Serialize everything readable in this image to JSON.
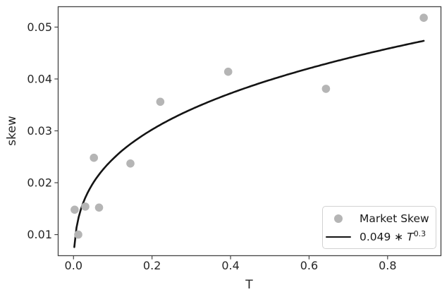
{
  "figure": {
    "background": "#ffffff"
  },
  "chart_data": {
    "type": "scatter+line",
    "title": "",
    "xlabel": "T",
    "ylabel": "skew",
    "xlim": [
      -0.04,
      0.935
    ],
    "ylim": [
      0.006,
      0.054
    ],
    "x_ticks": [
      0.0,
      0.2,
      0.4,
      0.6,
      0.8
    ],
    "x_tick_labels": [
      "0.0",
      "0.2",
      "0.4",
      "0.6",
      "0.8"
    ],
    "y_ticks": [
      0.01,
      0.02,
      0.03,
      0.04,
      0.05
    ],
    "y_tick_labels": [
      "0.01",
      "0.02",
      "0.03",
      "0.04",
      "0.05"
    ],
    "grid": false,
    "legend": {
      "position": "lower right",
      "entries": [
        {
          "handle": "marker",
          "label": "Market Skew"
        },
        {
          "handle": "line",
          "label_plain": "0.049 * T^0.3",
          "label_prefix": "0.049 ∗ ",
          "label_var": "T",
          "label_sup": "0.3"
        }
      ]
    },
    "series": [
      {
        "name": "Market Skew",
        "type": "scatter",
        "color": "#b5b5b5",
        "points": [
          [
            0.003,
            0.0148
          ],
          [
            0.012,
            0.01
          ],
          [
            0.03,
            0.0154
          ],
          [
            0.052,
            0.0248
          ],
          [
            0.065,
            0.0152
          ],
          [
            0.145,
            0.0237
          ],
          [
            0.221,
            0.0356
          ],
          [
            0.394,
            0.0414
          ],
          [
            0.643,
            0.0381
          ],
          [
            0.892,
            0.0518
          ]
        ]
      },
      {
        "name": "0.049 * T^0.3",
        "type": "line",
        "color": "#141414",
        "formula": {
          "a": 0.049,
          "b": 0.3
        },
        "t_range": [
          0.002,
          0.892
        ]
      }
    ],
    "colors": {
      "axis": "#444444",
      "tick_text": "#262626",
      "scatter": "#b5b5b5",
      "curve": "#141414"
    }
  }
}
